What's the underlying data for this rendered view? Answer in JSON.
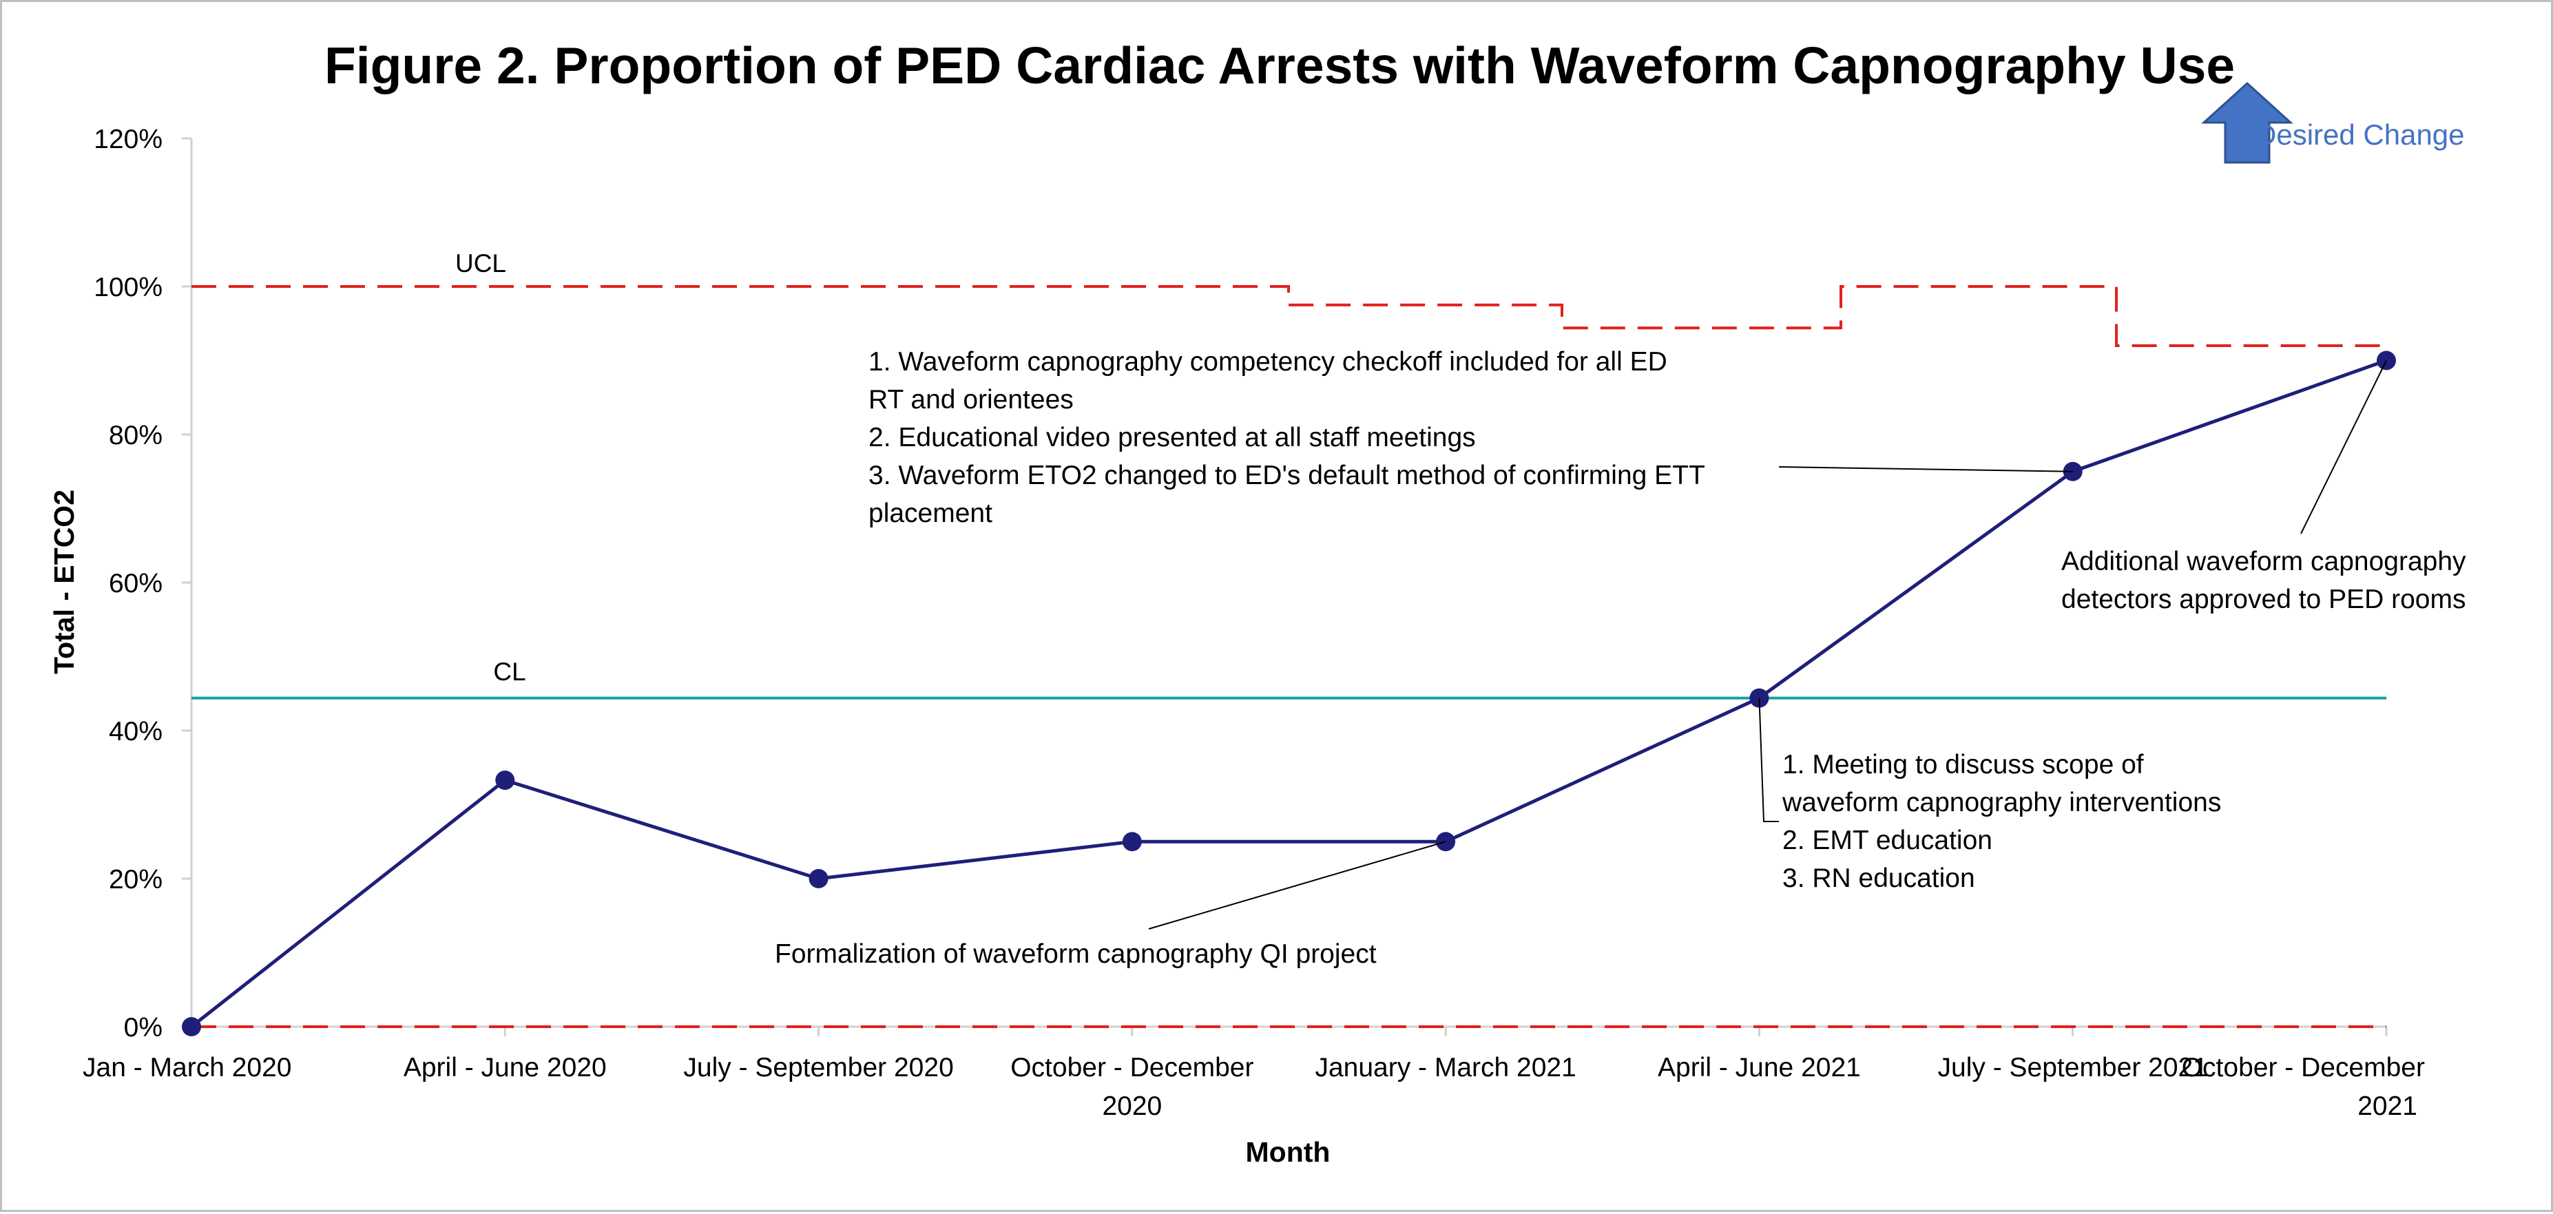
{
  "chart_data": {
    "type": "line",
    "title": "Figure 2. Proportion of PED Cardiac Arrests with Waveform Capnography Use",
    "xlabel": "Month",
    "ylabel": "Total - ETCO2",
    "ylim": [
      0,
      1.2
    ],
    "yticks": [
      {
        "value": 0,
        "label": "0%"
      },
      {
        "value": 0.2,
        "label": "20%"
      },
      {
        "value": 0.4,
        "label": "40%"
      },
      {
        "value": 0.6,
        "label": "60%"
      },
      {
        "value": 0.8,
        "label": "80%"
      },
      {
        "value": 1.0,
        "label": "100%"
      },
      {
        "value": 1.2,
        "label": "120%"
      }
    ],
    "categories": [
      [
        "Jan - March 2020"
      ],
      [
        "April - June 2020"
      ],
      [
        "July - September 2020"
      ],
      [
        "October - December",
        "2020"
      ],
      [
        "January - March 2021"
      ],
      [
        "April - June 2021"
      ],
      [
        "July - September 2021"
      ],
      [
        "October - December",
        "2021"
      ]
    ],
    "series": [
      {
        "values": [
          0,
          0.333,
          0.2,
          0.25,
          0.25,
          0.444,
          0.75,
          0.9
        ],
        "color": "#1f1f7a"
      }
    ],
    "control_lines": {
      "ucl_label": "UCL",
      "cl_label": "CL",
      "ucl": [
        1.0,
        1.0,
        1.0,
        1.0,
        0.975,
        0.944,
        1.0,
        0.92
      ],
      "cl": 0.444,
      "lcl": 0,
      "ucl_color": "#e3201c",
      "cl_color": "#1a9e9e"
    },
    "annotations": [
      {
        "lines": [
          "1. Waveform capnography  competency checkoff included for all ED",
          "RT and orientees",
          "2. Educational video presented at all staff meetings",
          "3. Waveform ETO2 changed to ED's default method of confirming ETT",
          "placement"
        ],
        "target_index": 6
      },
      {
        "lines": [
          "Additional waveform capnography",
          "detectors approved to PED rooms"
        ],
        "target_index": 7
      },
      {
        "lines": [
          "1. Meeting to discuss scope of",
          "waveform capnography interventions",
          "2. EMT education",
          "3. RN education"
        ],
        "target_index": 5
      },
      {
        "lines": [
          "Formalization of waveform capnography QI project"
        ],
        "target_index": 4
      }
    ],
    "desired_change": {
      "label": "Desired Change",
      "arrow_color": "#4472c4",
      "text_color": "#4472c4"
    },
    "grid": false,
    "legend": "none"
  }
}
